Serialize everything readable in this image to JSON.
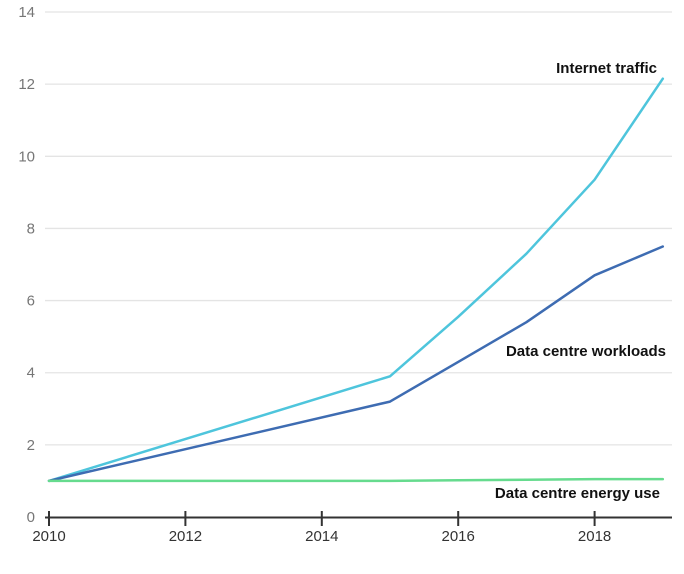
{
  "chart_data": {
    "type": "line",
    "title": "",
    "xlabel": "",
    "ylabel": "",
    "x": [
      2010,
      2015,
      2016,
      2017,
      2018,
      2019
    ],
    "series": [
      {
        "name": "Internet traffic",
        "color": "#4EC5DC",
        "values": [
          1.0,
          3.9,
          5.55,
          7.3,
          9.35,
          12.15
        ]
      },
      {
        "name": "Data centre workloads",
        "color": "#3E6CB2",
        "values": [
          1.0,
          3.2,
          4.3,
          5.4,
          6.7,
          7.5
        ]
      },
      {
        "name": "Data centre energy use",
        "color": "#66DB8E",
        "values": [
          1.0,
          1.0,
          1.02,
          1.03,
          1.05,
          1.05
        ]
      }
    ],
    "xticks": [
      2010,
      2012,
      2014,
      2016,
      2018
    ],
    "yticks": [
      0,
      2,
      4,
      6,
      8,
      10,
      12,
      14
    ],
    "xlim": [
      2010,
      2019.15
    ],
    "ylim": [
      0,
      14
    ],
    "grid": "horizontal",
    "legend": "inline-labels-right"
  },
  "colors": {
    "background": "#FFFFFF",
    "gridline": "#E4E4E4",
    "axis": "#333333",
    "y_tick_label": "#767676",
    "x_tick_label": "#333333",
    "series_label": "#111111"
  }
}
